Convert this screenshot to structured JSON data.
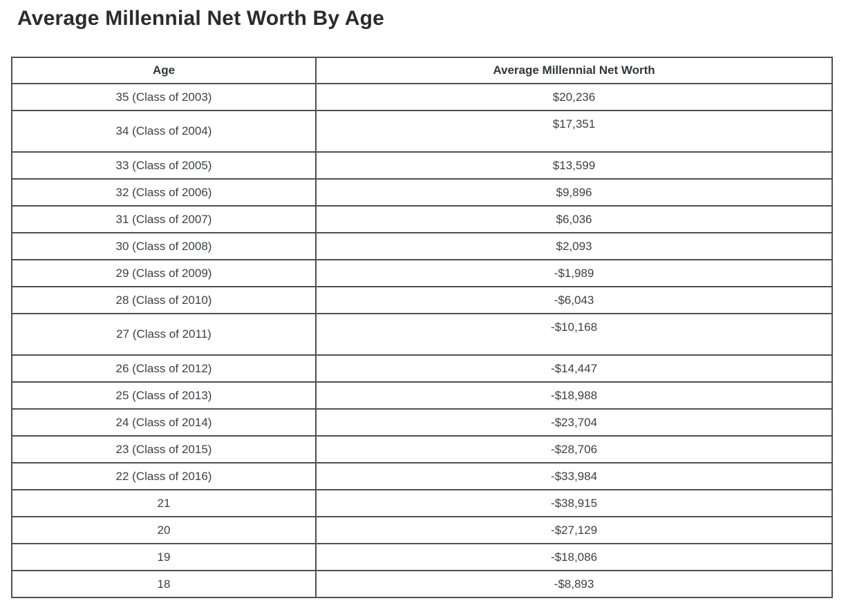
{
  "title": "Average Millennial Net Worth By Age",
  "table": {
    "header": {
      "age": "Age",
      "net_worth": "Average Millennial Net Worth"
    },
    "rows": [
      {
        "age": "35 (Class of 2003)",
        "net_worth": "$20,236"
      },
      {
        "age": "34 (Class of 2004)",
        "net_worth": "$17,351"
      },
      {
        "age": "33 (Class of 2005)",
        "net_worth": "$13,599"
      },
      {
        "age": "32 (Class of 2006)",
        "net_worth": "$9,896"
      },
      {
        "age": "31 (Class of 2007)",
        "net_worth": "$6,036"
      },
      {
        "age": "30 (Class of 2008)",
        "net_worth": "$2,093"
      },
      {
        "age": "29 (Class of 2009)",
        "net_worth": "-$1,989"
      },
      {
        "age": "28 (Class of 2010)",
        "net_worth": "-$6,043"
      },
      {
        "age": "27 (Class of 2011)",
        "net_worth": "-$10,168"
      },
      {
        "age": "26 (Class of 2012)",
        "net_worth": "-$14,447"
      },
      {
        "age": "25 (Class of 2013)",
        "net_worth": "-$18,988"
      },
      {
        "age": "24 (Class of 2014)",
        "net_worth": "-$23,704"
      },
      {
        "age": "23 (Class of 2015)",
        "net_worth": "-$28,706"
      },
      {
        "age": "22 (Class of 2016)",
        "net_worth": "-$33,984"
      },
      {
        "age": "21",
        "net_worth": "-$38,915"
      },
      {
        "age": "20",
        "net_worth": "-$27,129"
      },
      {
        "age": "19",
        "net_worth": "-$18,086"
      },
      {
        "age": "18",
        "net_worth": "-$8,893"
      }
    ]
  },
  "colors": {
    "background": "#ffffff",
    "border": "#4f4f4f",
    "text": "#3d3f42",
    "title": "#2b2b2b"
  },
  "chart_data": {
    "type": "table",
    "title": "Average Millennial Net Worth By Age",
    "columns": [
      "Age",
      "Average Millennial Net Worth"
    ],
    "rows": [
      [
        "35 (Class of 2003)",
        "$20,236"
      ],
      [
        "34 (Class of 2004)",
        "$17,351"
      ],
      [
        "33 (Class of 2005)",
        "$13,599"
      ],
      [
        "32 (Class of 2006)",
        "$9,896"
      ],
      [
        "31 (Class of 2007)",
        "$6,036"
      ],
      [
        "30 (Class of 2008)",
        "$2,093"
      ],
      [
        "29 (Class of 2009)",
        "-$1,989"
      ],
      [
        "28 (Class of 2010)",
        "-$6,043"
      ],
      [
        "27 (Class of 2011)",
        "-$10,168"
      ],
      [
        "26 (Class of 2012)",
        "-$14,447"
      ],
      [
        "25 (Class of 2013)",
        "-$18,988"
      ],
      [
        "24 (Class of 2014)",
        "-$23,704"
      ],
      [
        "23 (Class of 2015)",
        "-$28,706"
      ],
      [
        "22 (Class of 2016)",
        "-$33,984"
      ],
      [
        "21",
        "-$38,915"
      ],
      [
        "20",
        "-$27,129"
      ],
      [
        "19",
        "-$18,086"
      ],
      [
        "18",
        "-$8,893"
      ]
    ],
    "ages": [
      35,
      34,
      33,
      32,
      31,
      30,
      29,
      28,
      27,
      26,
      25,
      24,
      23,
      22,
      21,
      20,
      19,
      18
    ],
    "net_worth_values": [
      20236,
      17351,
      13599,
      9896,
      6036,
      2093,
      -1989,
      -6043,
      -10168,
      -14447,
      -18988,
      -23704,
      -28706,
      -33984,
      -38915,
      -27129,
      -18086,
      -8893
    ]
  }
}
